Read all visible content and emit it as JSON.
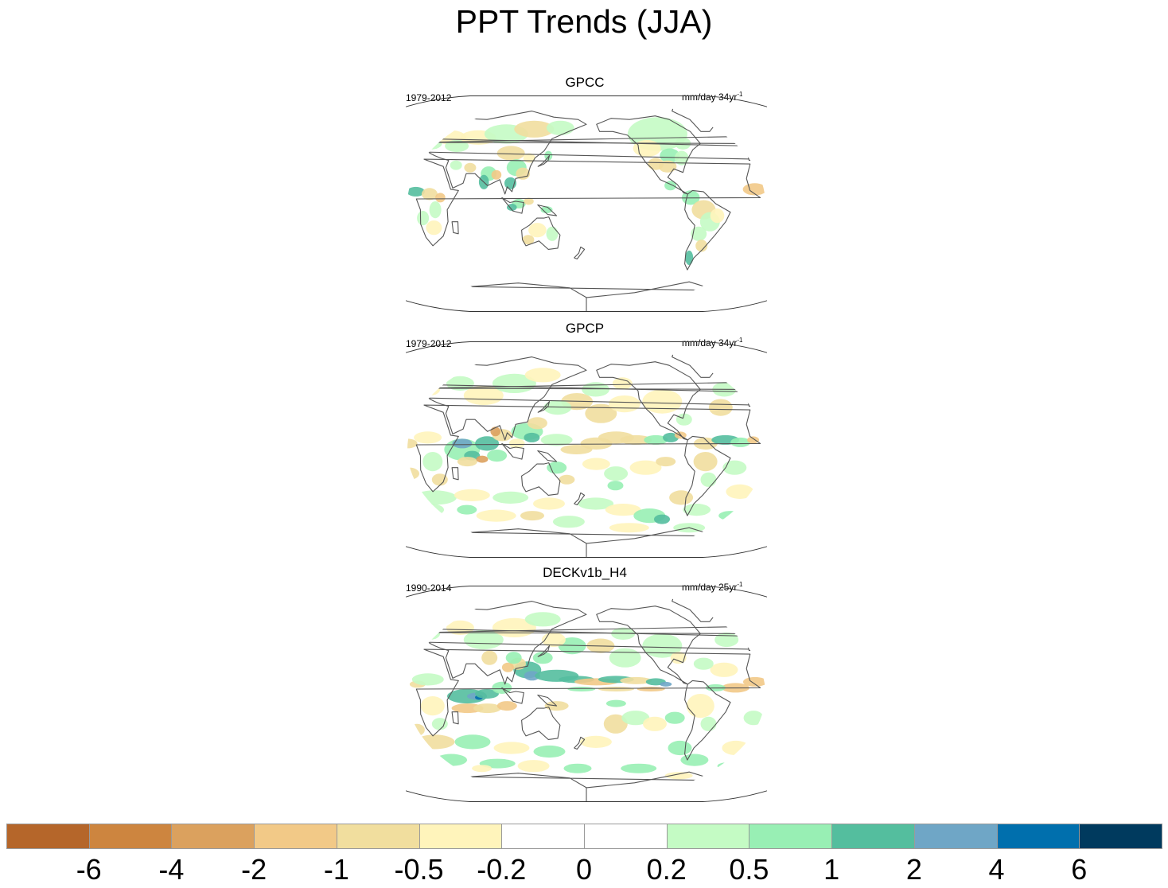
{
  "title": "PPT Trends (JJA)",
  "panels": [
    {
      "title": "GPCC",
      "period": "1979-2012",
      "units": "mm/day 34yr",
      "units_exp": "-1",
      "pattern": "gpcc"
    },
    {
      "title": "GPCP",
      "period": "1979-2012",
      "units": "mm/day 34yr",
      "units_exp": "-1",
      "pattern": "gpcp"
    },
    {
      "title": "DECKv1b_H4",
      "period": "1990-2014",
      "units": "mm/day 25yr",
      "units_exp": "-1",
      "pattern": "deck"
    }
  ],
  "colorbar": {
    "labels": [
      "-6",
      "-4",
      "-2",
      "-1",
      "-0.5",
      "-0.2",
      "0",
      "0.2",
      "0.5",
      "1",
      "2",
      "4",
      "6"
    ],
    "colors": [
      "#b5662a",
      "#cd853f",
      "#dba15e",
      "#f2c987",
      "#f1de9e",
      "#fff4bb",
      "#ffffff",
      "#ffffff",
      "#c4fbc4",
      "#98efb4",
      "#54be9e",
      "#6fa6c6",
      "#006fad",
      "#003a5e"
    ]
  }
}
